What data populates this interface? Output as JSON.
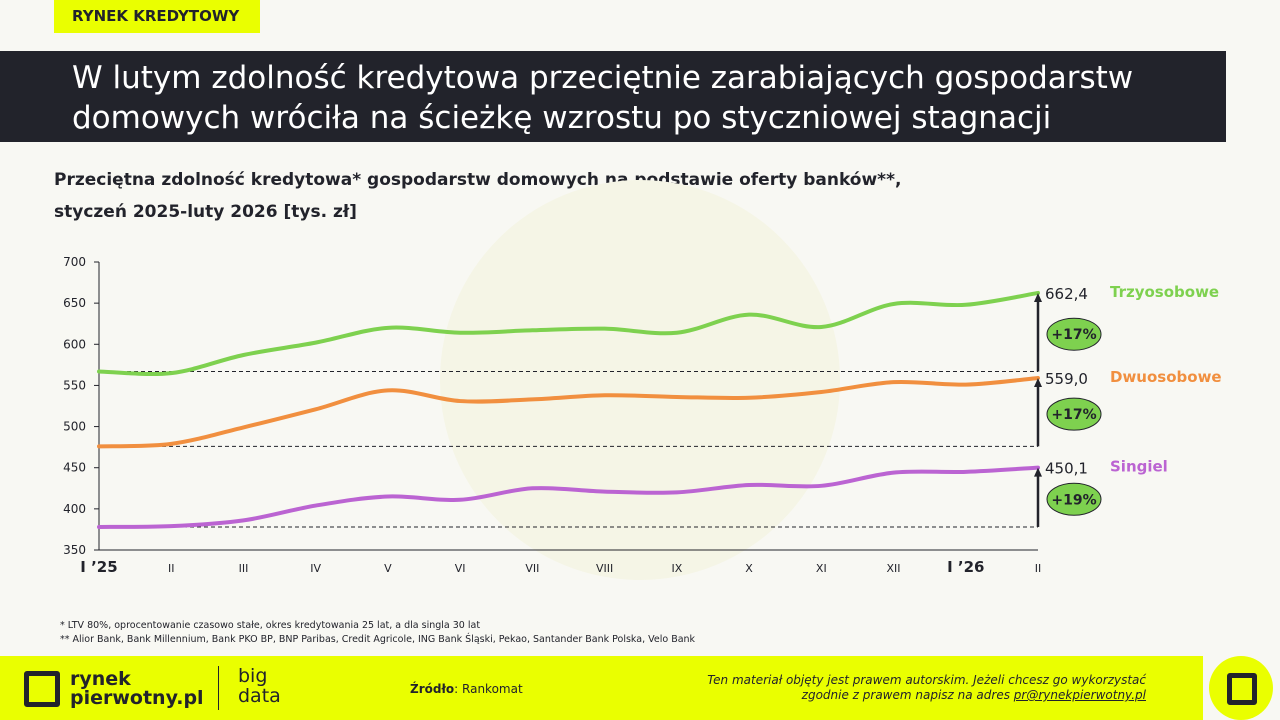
{
  "tag": "RYNEK KREDYTOWY",
  "title": "W lutym zdolność kredytowa przeciętnie zarabiających gospodarstw domowych wróciła na ścieżkę wzrostu po styczniowej stagnacji",
  "chart_data": {
    "type": "line",
    "title_line1": "Przeciętna zdolność kredytowa* gospodarstw domowych na podstawie oferty banków**,",
    "title_line2": "styczeń 2025-luty 2026 [tys. zł]",
    "categories": [
      "I ’25",
      "II",
      "III",
      "IV",
      "V",
      "VI",
      "VII",
      "VIII",
      "IX",
      "X",
      "XI",
      "XII",
      "I ’26",
      "II"
    ],
    "bold_categories": [
      "I ’25",
      "I ’26"
    ],
    "ylim": [
      350,
      700
    ],
    "yticks": [
      350,
      400,
      450,
      500,
      550,
      600,
      650,
      700
    ],
    "grid": false,
    "series": [
      {
        "name": "Trzyosobowe",
        "color": "#7ed14f",
        "values": [
          567,
          565,
          587,
          602,
          620,
          614,
          617,
          619,
          614,
          636,
          621,
          649,
          648,
          662.4
        ],
        "end_label": "662,4",
        "change": "+17%"
      },
      {
        "name": "Dwuosobowe",
        "color": "#f18f3f",
        "values": [
          476,
          479,
          499,
          521,
          544,
          531,
          533,
          538,
          536,
          535,
          542,
          554,
          551,
          559.0
        ],
        "end_label": "559,0",
        "change": "+17%"
      },
      {
        "name": "Singiel",
        "color": "#bb64d2",
        "values": [
          378,
          379,
          386,
          404,
          415,
          411,
          425,
          421,
          420,
          429,
          428,
          444,
          445,
          450.1
        ],
        "end_label": "450,1",
        "change": "+19%"
      }
    ],
    "badge_color": "#7ed14f"
  },
  "notes": [
    "* LTV 80%, oprocentowanie czasowo stałe, okres kredytowania 25 lat, a dla singla 30 lat",
    "** Alior Bank, Bank Millennium, Bank PKO BP, BNP Paribas, Credit Agricole, ING Bank Śląski, Pekao, Santander Bank Polska, Velo Bank"
  ],
  "footer": {
    "logo1": "rynek",
    "logo2": "pierwotny.pl",
    "big": "big",
    "data": "data",
    "source_label": "Źródło",
    "source": ": Rankomat",
    "copy1": "Ten materiał objęty jest prawem autorskim. Jeżeli chcesz go wykorzystać",
    "copy2": "zgodnie z prawem napisz na adres ",
    "email": "pr@rynekpierwotny.pl"
  }
}
